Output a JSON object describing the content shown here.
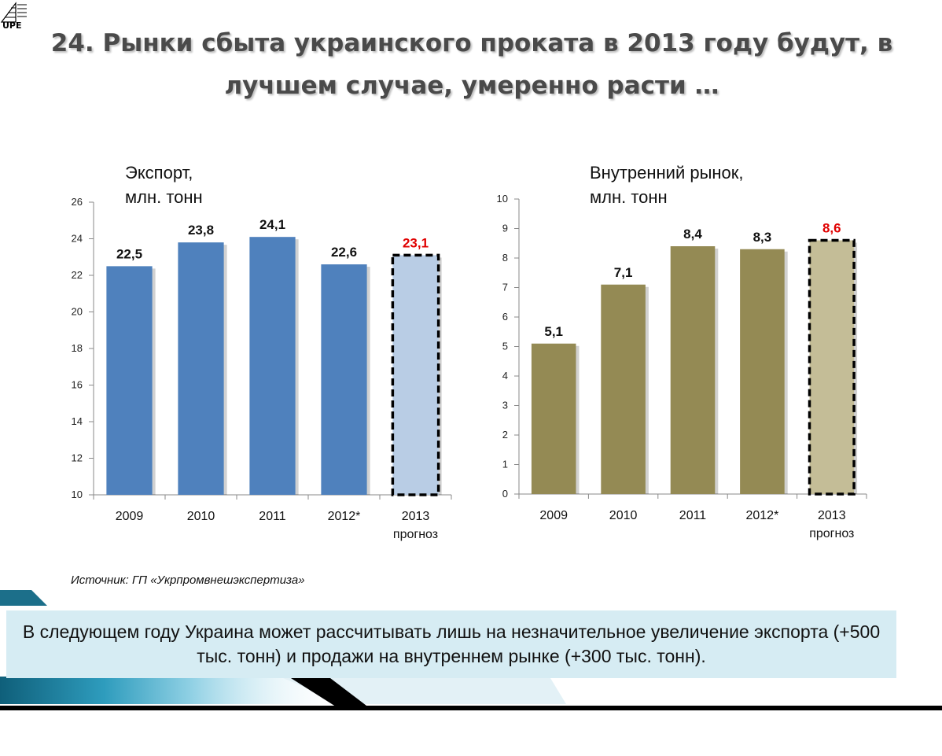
{
  "logo": {
    "text": "UPE"
  },
  "title": "24. Рынки сбыта украинского проката в 2013 году будут, в лучшем случае, умеренно расти …",
  "source": "Источник: ГП «Укрпромвнешэкспертиза»",
  "summary": "В следующем году Украина может рассчитывать лишь на незначительное увеличение экспорта (+500 тыс. тонн) и продажи на внутреннем рынке (+300 тыс. тонн).",
  "colors": {
    "export_bar": "#4f81bd",
    "export_forecast": "#b9cde5",
    "domestic_bar": "#948a54",
    "domestic_forecast": "#c4bd97",
    "forecast_label": "#e00000"
  },
  "chart_data": [
    {
      "type": "bar",
      "title": "Экспорт,\nмлн. тонн",
      "categories": [
        "2009",
        "2010",
        "2011",
        "2012*",
        "2013\nпрогноз"
      ],
      "values": [
        22.5,
        23.8,
        24.1,
        22.6,
        23.1
      ],
      "labels": [
        "22,5",
        "23,8",
        "24,1",
        "22,6",
        "23,1"
      ],
      "forecast_index": 4,
      "ylim": [
        10,
        26
      ],
      "yticks": [
        10,
        12,
        14,
        16,
        18,
        20,
        22,
        24,
        26
      ],
      "grid": false,
      "legend": "none"
    },
    {
      "type": "bar",
      "title": "Внутренний рынок,\nмлн. тонн",
      "categories": [
        "2009",
        "2010",
        "2011",
        "2012*",
        "2013\nпрогноз"
      ],
      "values": [
        5.1,
        7.1,
        8.4,
        8.3,
        8.6
      ],
      "labels": [
        "5,1",
        "7,1",
        "8,4",
        "8,3",
        "8,6"
      ],
      "forecast_index": 4,
      "ylim": [
        0,
        10
      ],
      "yticks": [
        0,
        1,
        2,
        3,
        4,
        5,
        6,
        7,
        8,
        9,
        10
      ],
      "grid": false,
      "legend": "none"
    }
  ]
}
